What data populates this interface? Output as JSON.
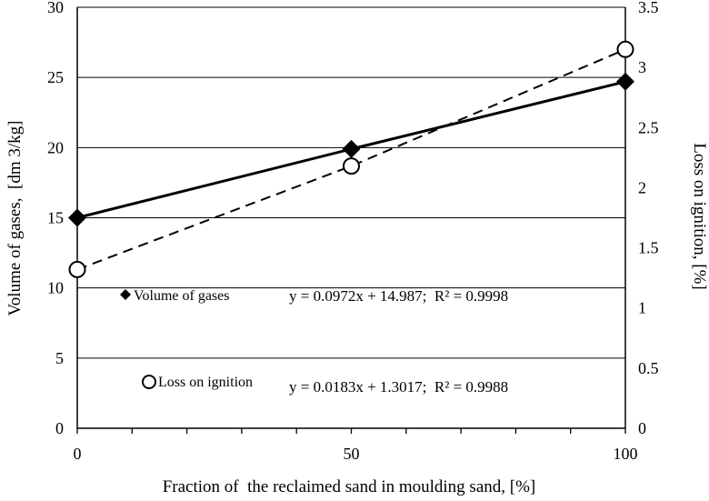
{
  "chart_data": {
    "type": "line",
    "x": [
      0,
      50,
      100
    ],
    "xlabel": "Fraction of  the reclaimed sand in moulding sand, [%]",
    "xlim": [
      0,
      100
    ],
    "xticks": [
      "0",
      "50",
      "100"
    ],
    "ylabel_left": "Volume of gases,  [dm 3/kg]",
    "ylim_left": [
      0,
      30
    ],
    "yticks_left": [
      "0",
      "5",
      "10",
      "15",
      "20",
      "25",
      "30"
    ],
    "ylabel_right": "Loss on ignition, [%]",
    "ylim_right": [
      0,
      3.5
    ],
    "yticks_right": [
      "0",
      "0.5",
      "1",
      "1.5",
      "2",
      "2.5",
      "3",
      "3.5"
    ],
    "grid": "horizontal",
    "series": [
      {
        "name": "Volume of gases",
        "axis": "left",
        "values": [
          15.0,
          19.9,
          24.7
        ],
        "marker": "filled-diamond",
        "line": "solid",
        "equation": "y = 0.0972x + 14.987;  R² = 0.9998"
      },
      {
        "name": "Loss on ignition",
        "axis": "right",
        "values": [
          1.32,
          2.18,
          3.15
        ],
        "marker": "open-circle",
        "line": "dashed",
        "equation": "y = 0.0183x + 1.3017;  R² = 0.9988"
      }
    ]
  }
}
